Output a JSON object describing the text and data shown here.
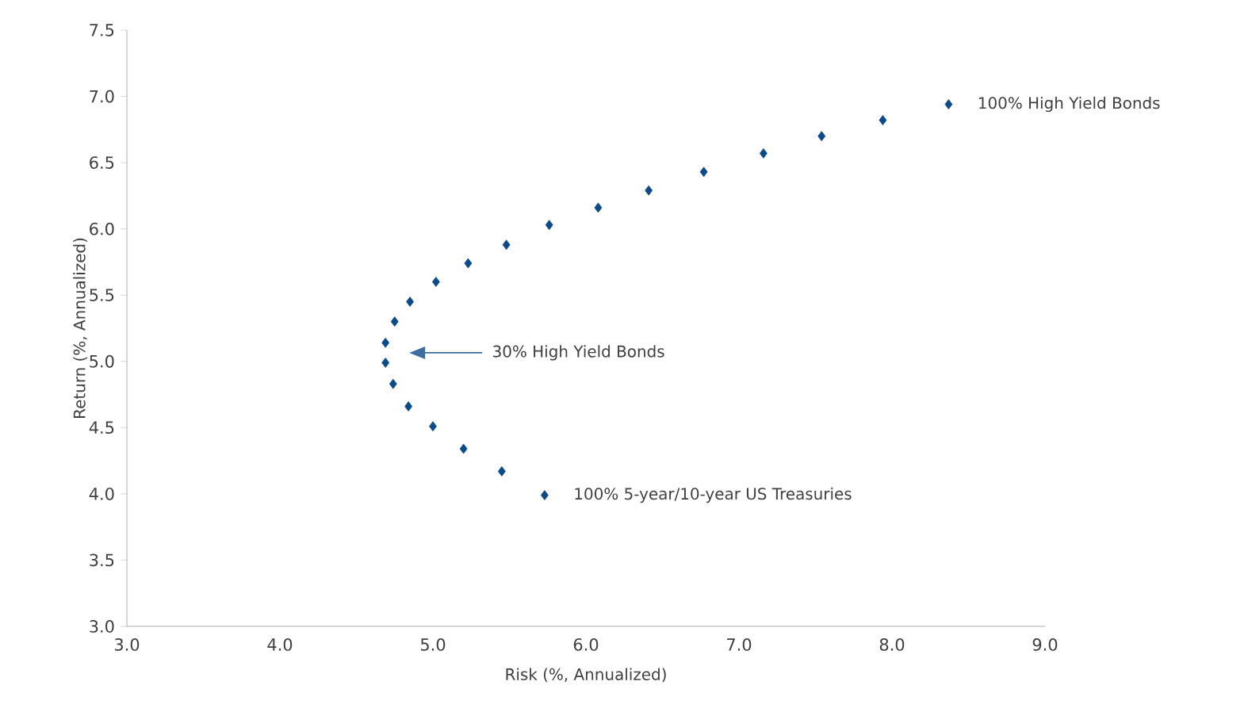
{
  "chart_data": {
    "type": "scatter",
    "xlabel": "Risk (%, Annualized)",
    "ylabel": "Return (%, Annualized)",
    "x": [
      5.73,
      5.45,
      5.2,
      5.0,
      4.84,
      4.74,
      4.69,
      4.69,
      4.75,
      4.85,
      5.02,
      5.23,
      5.48,
      5.76,
      6.08,
      6.41,
      6.77,
      7.16,
      7.54,
      7.94,
      8.37
    ],
    "values": [
      3.99,
      4.17,
      4.34,
      4.51,
      4.66,
      4.83,
      4.99,
      5.14,
      5.3,
      5.45,
      5.6,
      5.74,
      5.88,
      6.03,
      6.16,
      6.29,
      6.43,
      6.57,
      6.7,
      6.82,
      6.94
    ],
    "color": "#0b4a8b",
    "marker": "diamond",
    "xlim": [
      3.0,
      9.0
    ],
    "ylim": [
      3.0,
      7.5
    ],
    "xticks": [
      {
        "value": 3,
        "label": "3.0"
      },
      {
        "value": 4,
        "label": "4.0"
      },
      {
        "value": 5,
        "label": "5.0"
      },
      {
        "value": 6,
        "label": "6.0"
      },
      {
        "value": 7,
        "label": "7.0"
      },
      {
        "value": 8,
        "label": "8.0"
      },
      {
        "value": 9,
        "label": "9.0"
      }
    ],
    "yticks": [
      {
        "value": 3,
        "label": "3.0"
      },
      {
        "value": 3.5,
        "label": "3.5"
      },
      {
        "value": 4,
        "label": "4.0"
      },
      {
        "value": 4.5,
        "label": "4.5"
      },
      {
        "value": 5,
        "label": "5.0"
      },
      {
        "value": 5.5,
        "label": "5.5"
      },
      {
        "value": 6,
        "label": "6.0"
      },
      {
        "value": 6.5,
        "label": "6.5"
      },
      {
        "value": 7,
        "label": "7.0"
      },
      {
        "value": 7.5,
        "label": "7.5"
      }
    ],
    "grid": false,
    "legend": false,
    "annotations": [
      {
        "text": "100% High Yield Bonds",
        "x": 8.37,
        "y": 6.94
      },
      "30% High Yield Bonds",
      {
        "text": "100% 5-year/10-year US Treasuries",
        "x": 5.73,
        "y": 3.99
      }
    ]
  }
}
